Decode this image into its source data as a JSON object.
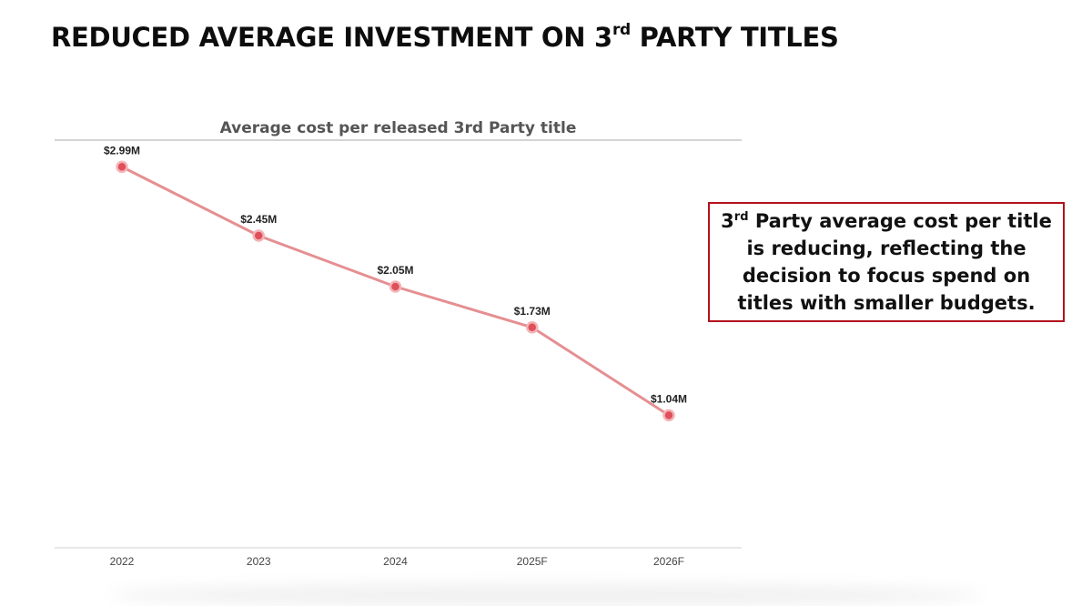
{
  "slide": {
    "title_prefix": "REDUCED AVERAGE INVESTMENT ON 3",
    "title_sup": "rd",
    "title_suffix": " PARTY TITLES"
  },
  "callout": {
    "prefix": "3",
    "sup": "rd",
    "text": " Party average cost per title is reducing, reflecting the decision to focus spend on titles with smaller budgets."
  },
  "colors": {
    "line": "#e58f92",
    "point": "#e0505a",
    "callout_border": "#b3121d"
  },
  "chart_data": {
    "type": "line",
    "title": "Average cost per released 3rd Party title",
    "xlabel": "",
    "ylabel": "",
    "categories": [
      "2022",
      "2023",
      "2024",
      "2025F",
      "2026F"
    ],
    "series": [
      {
        "values": [
          2.99,
          2.45,
          2.05,
          1.73,
          1.04
        ],
        "data_labels": [
          "$2.99M",
          "$2.45M",
          "$2.05M",
          "$1.73M",
          "$1.04M"
        ]
      }
    ],
    "ylim": [
      0,
      3.2
    ],
    "unit": "$M",
    "grid": false,
    "legend": "none"
  }
}
